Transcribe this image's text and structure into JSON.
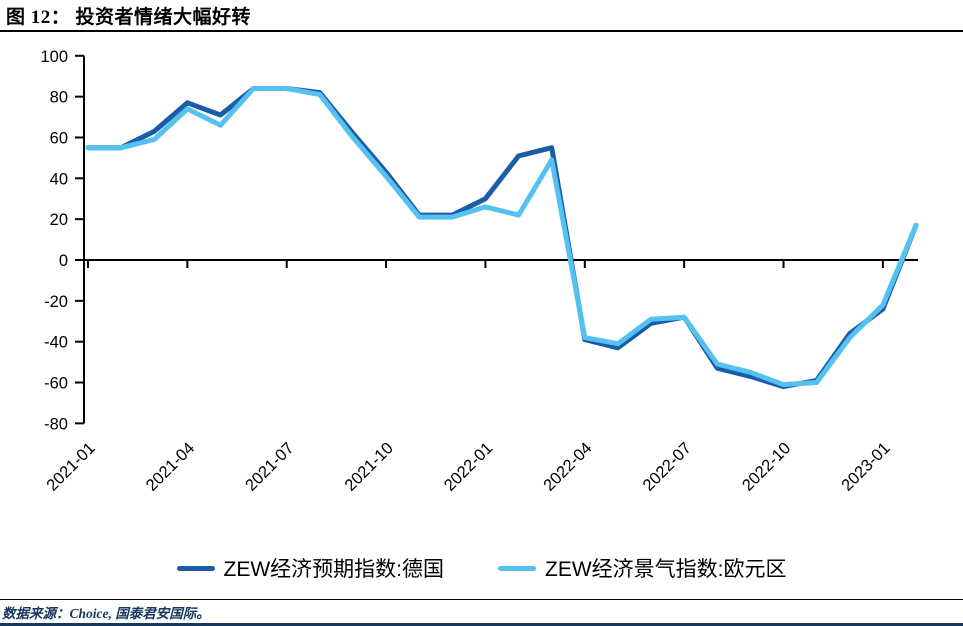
{
  "header": {
    "title": "图 12： 投资者情绪大幅好转"
  },
  "footer": {
    "source": "数据来源：Choice, 国泰君安国际。"
  },
  "chart_data": {
    "type": "line",
    "title": "图 12： 投资者情绪大幅好转",
    "x": [
      "2021-01",
      "2021-02",
      "2021-03",
      "2021-04",
      "2021-05",
      "2021-06",
      "2021-07",
      "2021-08",
      "2021-09",
      "2021-10",
      "2021-11",
      "2021-12",
      "2022-01",
      "2022-02",
      "2022-03",
      "2022-04",
      "2022-05",
      "2022-06",
      "2022-07",
      "2022-08",
      "2022-09",
      "2022-10",
      "2022-11",
      "2022-12",
      "2023-01",
      "2023-02"
    ],
    "x_tick_every": 3,
    "ylim": [
      -80,
      100
    ],
    "y_tick_step": 20,
    "grid": false,
    "legend_position": "bottom",
    "series": [
      {
        "name": "ZEW经济预期指数:德国",
        "color": "#1B5CA8",
        "values": [
          55,
          55,
          63,
          77,
          71,
          84,
          84,
          82,
          62,
          43,
          22,
          22,
          30,
          51,
          55,
          -39,
          -43,
          -31,
          -28,
          -53,
          -57,
          -62,
          -59,
          -36,
          -24,
          17
        ]
      },
      {
        "name": "ZEW经济景气指数:欧元区",
        "color": "#55C1F0",
        "values": [
          55,
          55,
          59,
          74,
          66,
          84,
          84,
          81,
          60,
          41,
          21,
          21,
          26,
          22,
          49,
          -38,
          -41,
          -29,
          -28,
          -51,
          -55,
          -61,
          -60,
          -38,
          -22,
          17
        ]
      }
    ]
  }
}
